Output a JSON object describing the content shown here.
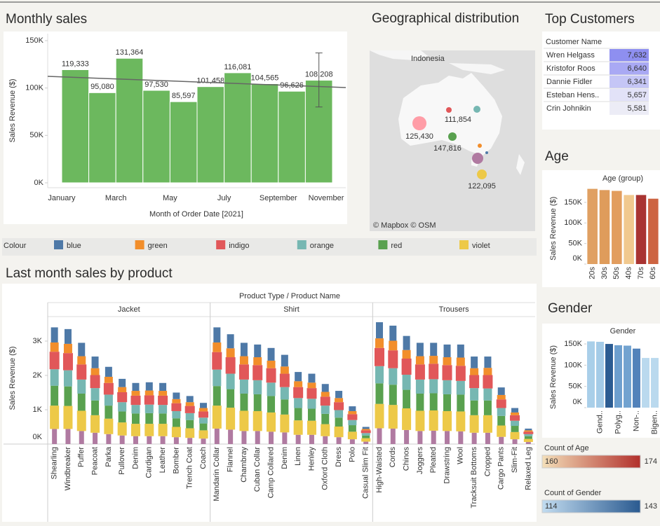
{
  "chart_data": [
    {
      "type": "bar",
      "title": "Monthly sales",
      "x_label": "Month of Order Date [2021]",
      "y_label": "Sales Revenue ($)",
      "categories": [
        "January",
        null,
        "March",
        null,
        "May",
        null,
        "July",
        null,
        "September",
        null,
        "November"
      ],
      "values": [
        119333,
        95080,
        131364,
        97530,
        85597,
        101458,
        116081,
        104565,
        96626,
        108208,
        null
      ],
      "value_labels": [
        "119,333",
        "95,080",
        "131,364",
        "97,530",
        "85,597",
        "101,458",
        "116,081",
        "104,565",
        "96,626",
        "108,208",
        null
      ],
      "color": "#6cb85e",
      "trend": [
        112300,
        100500
      ],
      "trend_color": "#666666",
      "interval": [
        80000,
        137000
      ],
      "ylim": [
        0,
        150000
      ],
      "yticks": [
        {
          "value": 0,
          "label": "0K"
        },
        {
          "value": 50000,
          "label": "50K"
        },
        {
          "value": 100000,
          "label": "100K"
        },
        {
          "value": 150000,
          "label": "150K"
        }
      ],
      "grid": false
    },
    {
      "type": "stacked_bar",
      "title": "Last month sales by product",
      "header": "Product Type / Product Name",
      "y_label": "Sales Revenue ($)",
      "legend_title": "Colour",
      "groups": [
        {
          "name": "Jacket",
          "categories": [
            "Shearling",
            "Windbreaker",
            "Puffer",
            "Peacoat",
            "Parka",
            "Pullover",
            "Denim",
            "Cardigan",
            "Leather",
            "Bomber",
            "Trench Coat",
            "Coach"
          ]
        },
        {
          "name": "Shirt",
          "categories": [
            "Mandarin Collar",
            "Flannel",
            "Chambray",
            "Cuban Collar",
            "Camp Collared",
            "Denim",
            "Linen",
            "Henley",
            "Oxford Cloth",
            "Dress",
            "Polo",
            "Casual Slim Fit"
          ]
        },
        {
          "name": "Trousers",
          "categories": [
            "High-Waisted",
            "Cords",
            "Chinos",
            "Joggers",
            "Pleated",
            "Drawstring",
            "Wool",
            "Tracksuit Bottoms",
            "Cropped",
            "Cargo Pants",
            "Slim-Fit",
            "Relaxed Leg"
          ]
        }
      ],
      "series": [
        {
          "name": "blue",
          "color": "#4e79a7",
          "values": [
            440,
            430,
            390,
            340,
            290,
            240,
            230,
            240,
            230,
            190,
            180,
            150,
            440,
            410,
            390,
            370,
            370,
            340,
            270,
            260,
            230,
            210,
            140,
            60,
            470,
            440,
            410,
            390,
            380,
            370,
            380,
            340,
            330,
            220,
            130,
            50
          ]
        },
        {
          "name": "green",
          "color": "#f28e2b",
          "values": [
            270,
            270,
            240,
            200,
            180,
            150,
            140,
            140,
            140,
            120,
            110,
            100,
            280,
            260,
            240,
            230,
            220,
            210,
            170,
            160,
            140,
            120,
            90,
            40,
            280,
            280,
            250,
            240,
            230,
            230,
            240,
            200,
            210,
            130,
            80,
            40
          ]
        },
        {
          "name": "indigo",
          "color": "#e15759",
          "values": [
            510,
            500,
            440,
            380,
            340,
            290,
            270,
            270,
            270,
            230,
            210,
            180,
            510,
            480,
            440,
            440,
            420,
            390,
            320,
            310,
            260,
            230,
            170,
            80,
            530,
            520,
            470,
            440,
            450,
            440,
            440,
            380,
            390,
            250,
            160,
            70
          ]
        },
        {
          "name": "orange",
          "color": "#76b7b2",
          "values": [
            480,
            470,
            410,
            360,
            320,
            270,
            250,
            250,
            250,
            210,
            200,
            170,
            480,
            450,
            410,
            410,
            390,
            360,
            290,
            290,
            240,
            220,
            150,
            70,
            500,
            480,
            440,
            410,
            410,
            410,
            400,
            360,
            350,
            230,
            150,
            60
          ]
        },
        {
          "name": "red",
          "color": "#59a14f",
          "values": [
            580,
            570,
            500,
            430,
            380,
            320,
            300,
            310,
            300,
            250,
            240,
            200,
            570,
            540,
            500,
            490,
            480,
            440,
            360,
            350,
            300,
            260,
            190,
            80,
            600,
            590,
            540,
            500,
            500,
            490,
            490,
            430,
            430,
            280,
            180,
            80
          ]
        },
        {
          "name": "violet",
          "color": "#edc948",
          "values": [
            680,
            670,
            590,
            510,
            450,
            380,
            360,
            360,
            360,
            300,
            280,
            240,
            670,
            640,
            590,
            580,
            560,
            520,
            420,
            410,
            350,
            310,
            220,
            100,
            710,
            690,
            630,
            590,
            590,
            580,
            580,
            510,
            510,
            330,
            210,
            90
          ]
        },
        {
          "color": "#b07aa1",
          "values": [
            440,
            440,
            380,
            330,
            290,
            250,
            230,
            230,
            230,
            200,
            180,
            160,
            450,
            420,
            380,
            380,
            360,
            340,
            270,
            270,
            230,
            200,
            140,
            70,
            460,
            450,
            410,
            380,
            390,
            380,
            370,
            330,
            330,
            210,
            140,
            60
          ]
        }
      ],
      "ylim": [
        0,
        3700
      ],
      "yticks": [
        {
          "value": 0,
          "label": "0K"
        },
        {
          "value": 1000,
          "label": "1K"
        },
        {
          "value": 2000,
          "label": "2K"
        },
        {
          "value": 3000,
          "label": "3K"
        }
      ]
    },
    {
      "type": "bar",
      "title": "Age",
      "subtitle": "Age (group)",
      "y_label": "Sales Revenue ($)",
      "categories": [
        "20s",
        "30s",
        "50s",
        "40s",
        "70s",
        "60s"
      ],
      "values": [
        183000,
        180000,
        178000,
        168000,
        168000,
        159000
      ],
      "colors": [
        "#e0a062",
        "#df9c5b",
        "#e29d5e",
        "#f1c98f",
        "#a93432",
        "#cd6442"
      ],
      "ylim": [
        0,
        190000
      ],
      "yticks": [
        {
          "value": 0,
          "label": "0K"
        },
        {
          "value": 50000,
          "label": "50K"
        },
        {
          "value": 100000,
          "label": "100K"
        },
        {
          "value": 150000,
          "label": "150K"
        }
      ]
    },
    {
      "type": "bar",
      "title": "Gender",
      "subtitle": "Gender",
      "y_label": "Sales Revenue ($)",
      "categories": [
        null,
        "Gend..",
        null,
        "Polyg..",
        null,
        "Non-..",
        null,
        "Bigen.."
      ],
      "values": [
        156000,
        155000,
        150000,
        147000,
        146000,
        139000,
        117000,
        117000
      ],
      "colors": [
        "#a9cfe9",
        "#a4cbe7",
        "#2c5c92",
        "#6d9fce",
        "#72a3d0",
        "#5282ba",
        "#bad9ee",
        "#bad9ee"
      ],
      "ylim": [
        0,
        160000
      ],
      "yticks": [
        {
          "value": 0,
          "label": "0K"
        },
        {
          "value": 50000,
          "label": "50K"
        },
        {
          "value": 100000,
          "label": "100K"
        },
        {
          "value": 150000,
          "label": "150K"
        }
      ]
    }
  ],
  "map": {
    "title": "Geographical distribution",
    "place": "Indonesia",
    "attribution": "© Mapbox © OSM",
    "points": [
      {
        "value": 125430,
        "label": "125,430",
        "color": "#ff9da7"
      },
      {
        "value": 111854,
        "label": "111,854",
        "color": "#e15759"
      },
      {
        "value": 147816,
        "label": "147,816",
        "color": "#59a14f"
      },
      {
        "value": 122095,
        "label": "122,095",
        "color": "#edc948"
      }
    ]
  },
  "top_customers": {
    "title": "Top Customers",
    "column": "Customer Name",
    "rows": [
      {
        "name": "Wren Helgass",
        "value": "7,632",
        "color": "#8e8ff0"
      },
      {
        "name": "Kristofor Roos",
        "value": "6,640",
        "color": "#a9a9f4"
      },
      {
        "name": "Dannie Fidler",
        "value": "6,341",
        "color": "#c5c6f6"
      },
      {
        "name": "Esteban Hens..",
        "value": "5,657",
        "color": "#e2e2f8"
      },
      {
        "name": "Crin Johnikin",
        "value": "5,581",
        "color": "#ececf6"
      }
    ]
  },
  "legends": [
    {
      "title": "Count of Age",
      "min": 160,
      "max": 174,
      "colors": [
        "#f3dfb9",
        "#b2302c"
      ]
    },
    {
      "title": "Count of Gender",
      "min": 114,
      "max": 143,
      "colors": [
        "#c2dcf0",
        "#2a5a90"
      ]
    }
  ]
}
